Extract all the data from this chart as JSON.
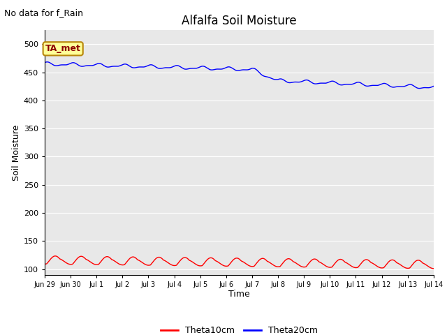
{
  "title": "Alfalfa Soil Moisture",
  "no_data_text": "No data for f_Rain",
  "ta_met_label": "TA_met",
  "xlabel": "Time",
  "ylabel": "Soil Moisture",
  "ylim": [
    90,
    525
  ],
  "yticks": [
    100,
    150,
    200,
    250,
    300,
    350,
    400,
    450,
    500
  ],
  "xtick_labels": [
    "Jun 29",
    "Jun 30",
    "Jul 1",
    "Jul 2",
    "Jul 3",
    "Jul 4",
    "Jul 5",
    "Jul 6",
    "Jul 7",
    "Jul 8",
    "Jul 9",
    "Jul 10",
    "Jul 11",
    "Jul 12",
    "Jul 13",
    "Jul 14"
  ],
  "bg_color": "#e8e8e8",
  "fig_bg": "#ffffff",
  "blue_color": "#0000ff",
  "red_color": "#ff0000",
  "legend_entries": [
    "Theta10cm",
    "Theta20cm"
  ],
  "title_fontsize": 12,
  "axis_label_fontsize": 9,
  "tick_fontsize": 8,
  "no_data_fontsize": 9,
  "legend_fontsize": 9
}
